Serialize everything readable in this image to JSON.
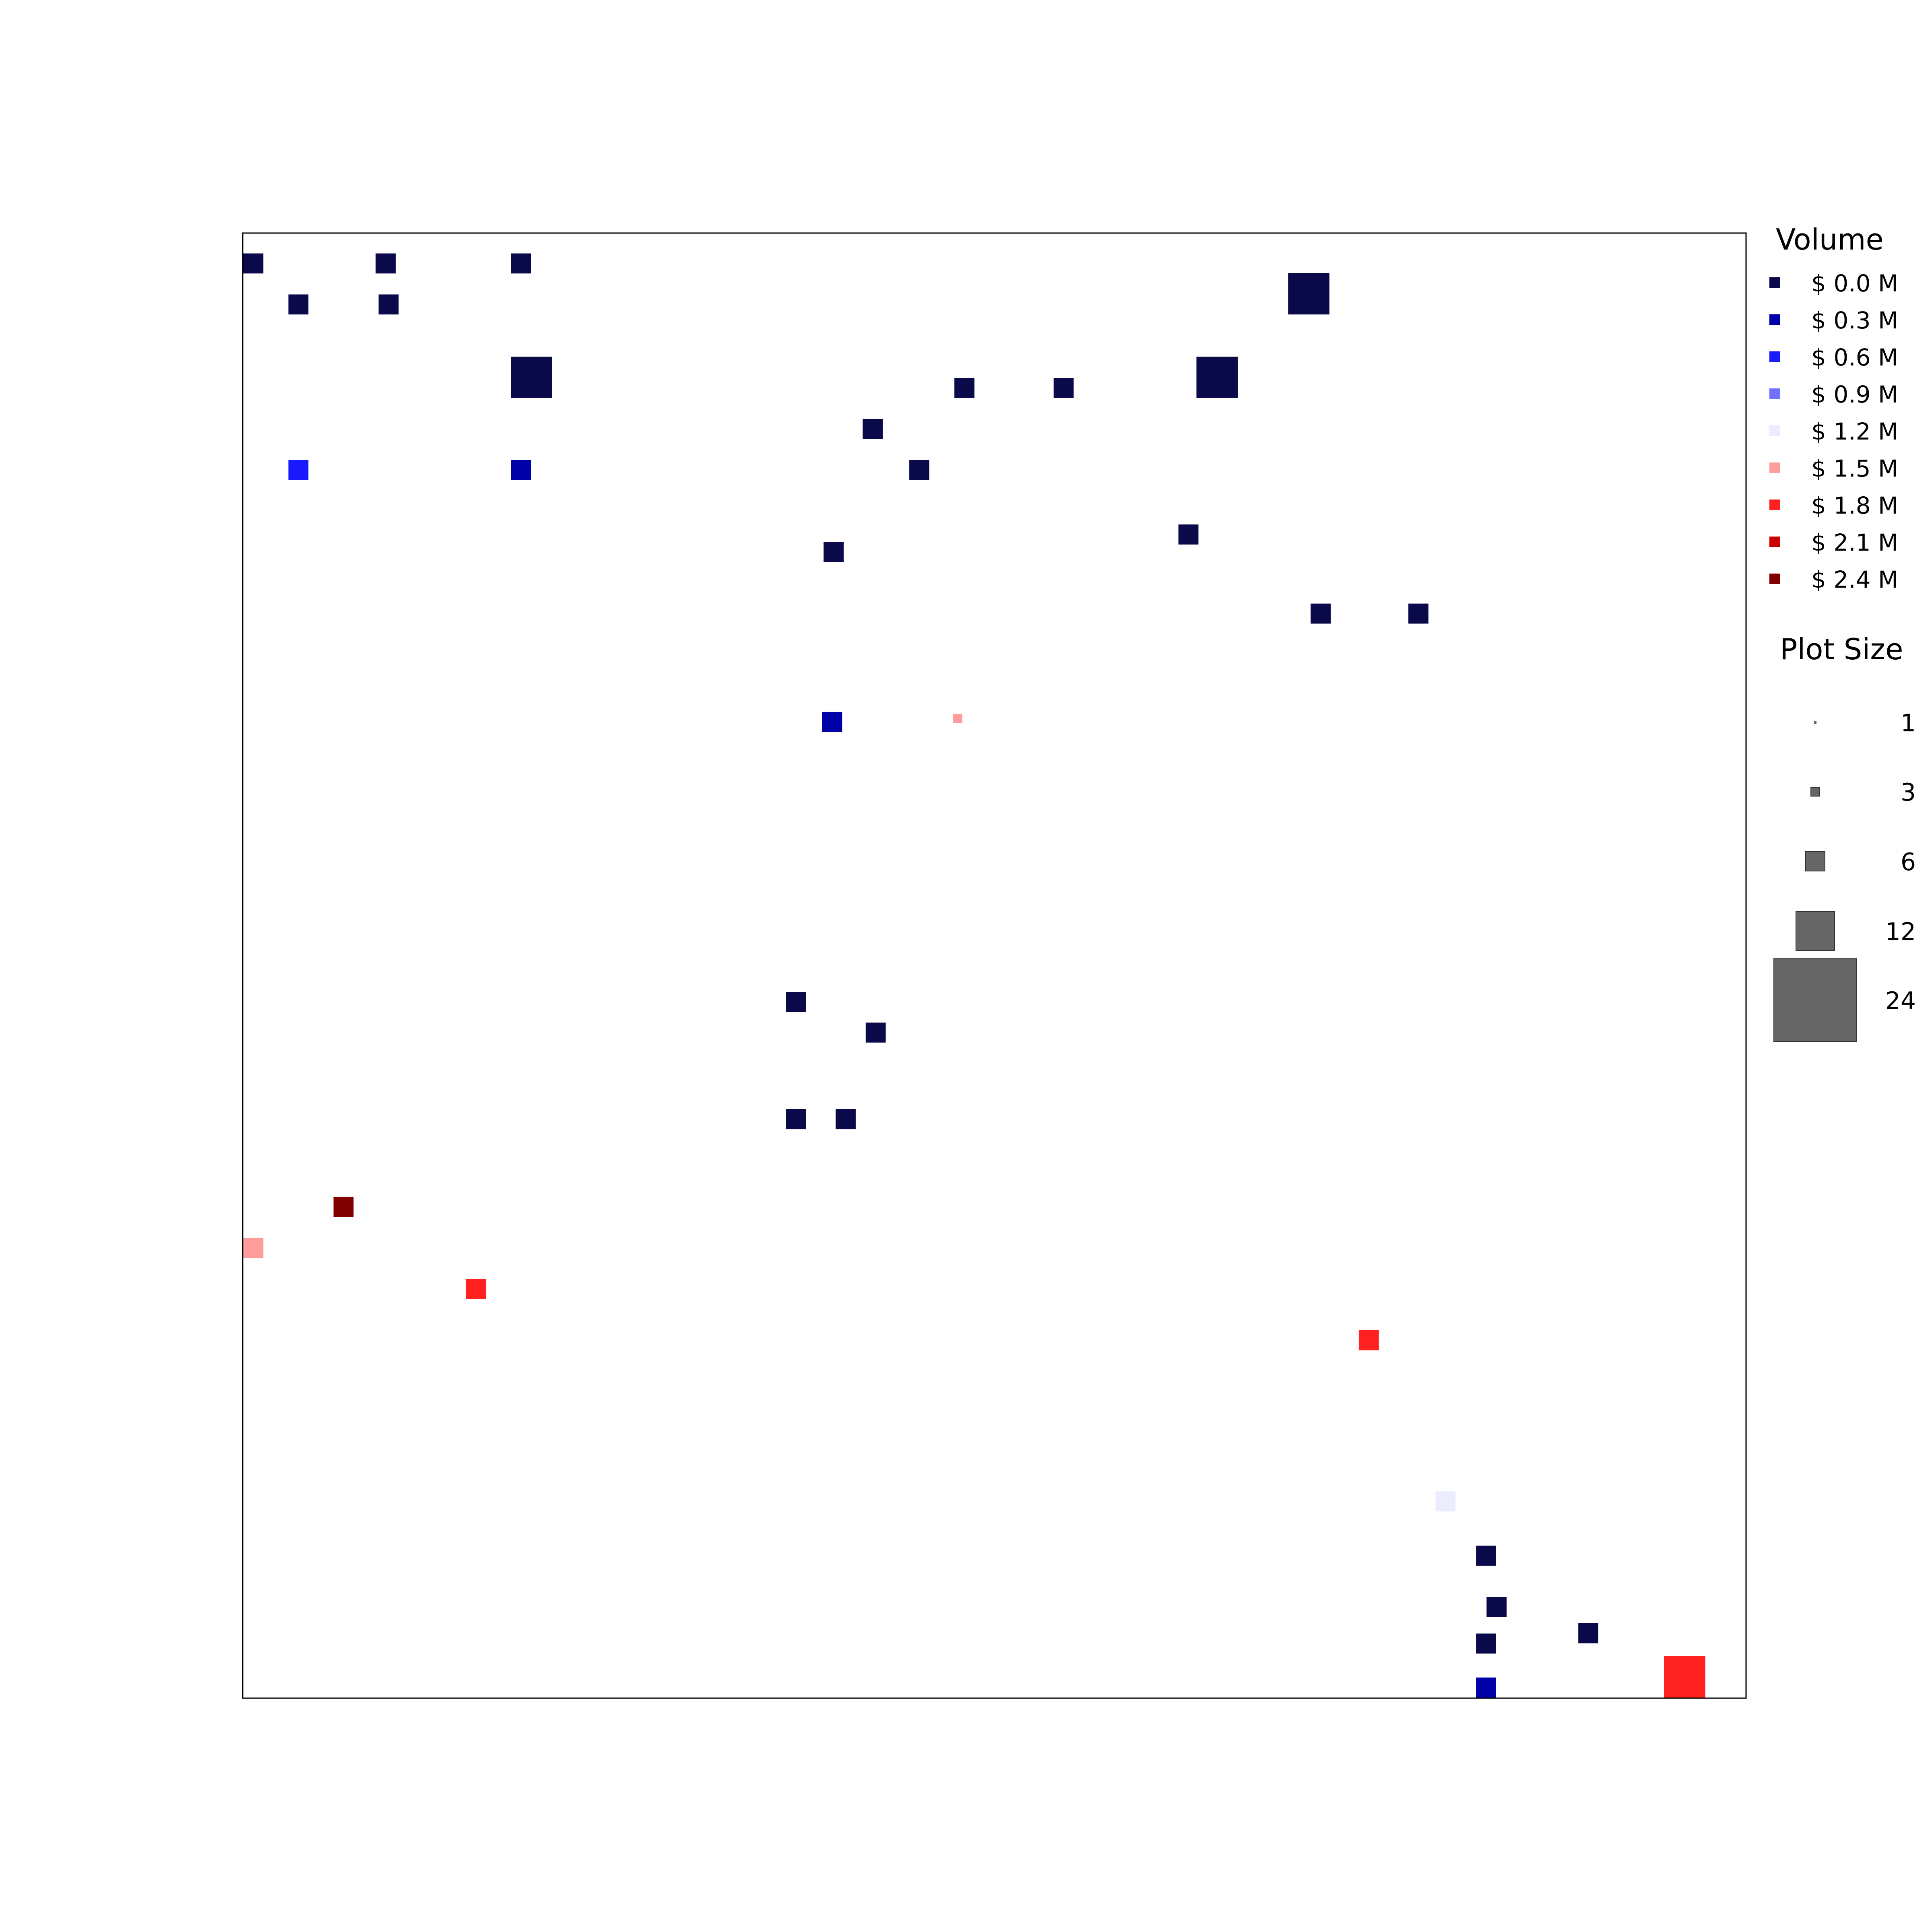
{
  "chart_data": {
    "type": "scatter",
    "marker": "square",
    "xlim": [
      0,
      1
    ],
    "ylim": [
      0,
      1
    ],
    "axes_ticks": false,
    "grid": false,
    "legend_placement": "right",
    "color_legend": {
      "title": "Volume",
      "entries": [
        {
          "label": "$ 0.0 M",
          "value": 0.0,
          "color": "#0a0a4a"
        },
        {
          "label": "$ 0.3 M",
          "value": 0.3,
          "color": "#0000a8"
        },
        {
          "label": "$ 0.6 M",
          "value": 0.6,
          "color": "#1a1aff"
        },
        {
          "label": "$ 0.9 M",
          "value": 0.9,
          "color": "#7070ff"
        },
        {
          "label": "$ 1.2 M",
          "value": 1.2,
          "color": "#ececff"
        },
        {
          "label": "$ 1.5 M",
          "value": 1.5,
          "color": "#ff9c9c"
        },
        {
          "label": "$ 1.8 M",
          "value": 1.8,
          "color": "#ff2020"
        },
        {
          "label": "$ 2.1 M",
          "value": 2.1,
          "color": "#cc0000"
        },
        {
          "label": "$ 2.4 M",
          "value": 2.4,
          "color": "#800000"
        }
      ]
    },
    "size_legend": {
      "title": "Plot Size",
      "entries": [
        {
          "label": "1",
          "value": 1
        },
        {
          "label": "3",
          "value": 3
        },
        {
          "label": "6",
          "value": 6
        },
        {
          "label": "12",
          "value": 12
        },
        {
          "label": "24",
          "value": 24
        }
      ]
    },
    "points": [
      {
        "x": 0.0,
        "y": 0.972,
        "s": 6,
        "v": 0.0
      },
      {
        "x": 0.03,
        "y": 0.944,
        "s": 6,
        "v": 0.0
      },
      {
        "x": 0.088,
        "y": 0.972,
        "s": 6,
        "v": 0.0
      },
      {
        "x": 0.09,
        "y": 0.944,
        "s": 6,
        "v": 0.0
      },
      {
        "x": 0.178,
        "y": 0.972,
        "s": 6,
        "v": 0.0
      },
      {
        "x": 0.178,
        "y": 0.887,
        "s": 12,
        "v": 0.0
      },
      {
        "x": 0.03,
        "y": 0.831,
        "s": 6,
        "v": 0.6
      },
      {
        "x": 0.178,
        "y": 0.831,
        "s": 6,
        "v": 0.3
      },
      {
        "x": 0.412,
        "y": 0.859,
        "s": 6,
        "v": 0.0
      },
      {
        "x": 0.443,
        "y": 0.831,
        "s": 6,
        "v": 0.0
      },
      {
        "x": 0.386,
        "y": 0.775,
        "s": 6,
        "v": 0.0
      },
      {
        "x": 0.473,
        "y": 0.887,
        "s": 6,
        "v": 0.0
      },
      {
        "x": 0.539,
        "y": 0.887,
        "s": 6,
        "v": 0.0
      },
      {
        "x": 0.634,
        "y": 0.887,
        "s": 12,
        "v": 0.0
      },
      {
        "x": 0.695,
        "y": 0.944,
        "s": 12,
        "v": 0.0
      },
      {
        "x": 0.622,
        "y": 0.787,
        "s": 6,
        "v": 0.0
      },
      {
        "x": 0.71,
        "y": 0.733,
        "s": 6,
        "v": 0.0
      },
      {
        "x": 0.775,
        "y": 0.733,
        "s": 6,
        "v": 0.0
      },
      {
        "x": 0.385,
        "y": 0.659,
        "s": 6,
        "v": 0.3
      },
      {
        "x": 0.472,
        "y": 0.665,
        "s": 3,
        "v": 1.5
      },
      {
        "x": 0.361,
        "y": 0.468,
        "s": 6,
        "v": 0.0
      },
      {
        "x": 0.414,
        "y": 0.447,
        "s": 6,
        "v": 0.0
      },
      {
        "x": 0.361,
        "y": 0.388,
        "s": 6,
        "v": 0.0
      },
      {
        "x": 0.394,
        "y": 0.388,
        "s": 6,
        "v": 0.0
      },
      {
        "x": 0.06,
        "y": 0.328,
        "s": 6,
        "v": 2.4
      },
      {
        "x": 0.0,
        "y": 0.3,
        "s": 6,
        "v": 1.5
      },
      {
        "x": 0.148,
        "y": 0.272,
        "s": 6,
        "v": 1.8
      },
      {
        "x": 0.742,
        "y": 0.237,
        "s": 6,
        "v": 1.8
      },
      {
        "x": 0.793,
        "y": 0.127,
        "s": 6,
        "v": 1.2
      },
      {
        "x": 0.945,
        "y": 0.0,
        "s": 12,
        "v": 1.8
      },
      {
        "x": 0.82,
        "y": 0.09,
        "s": 6,
        "v": 0.0
      },
      {
        "x": 0.827,
        "y": 0.055,
        "s": 6,
        "v": 0.0
      },
      {
        "x": 0.888,
        "y": 0.037,
        "s": 6,
        "v": 0.0
      },
      {
        "x": 0.82,
        "y": 0.03,
        "s": 6,
        "v": 0.0
      },
      {
        "x": 0.82,
        "y": 0.0,
        "s": 6,
        "v": 0.3
      }
    ]
  }
}
